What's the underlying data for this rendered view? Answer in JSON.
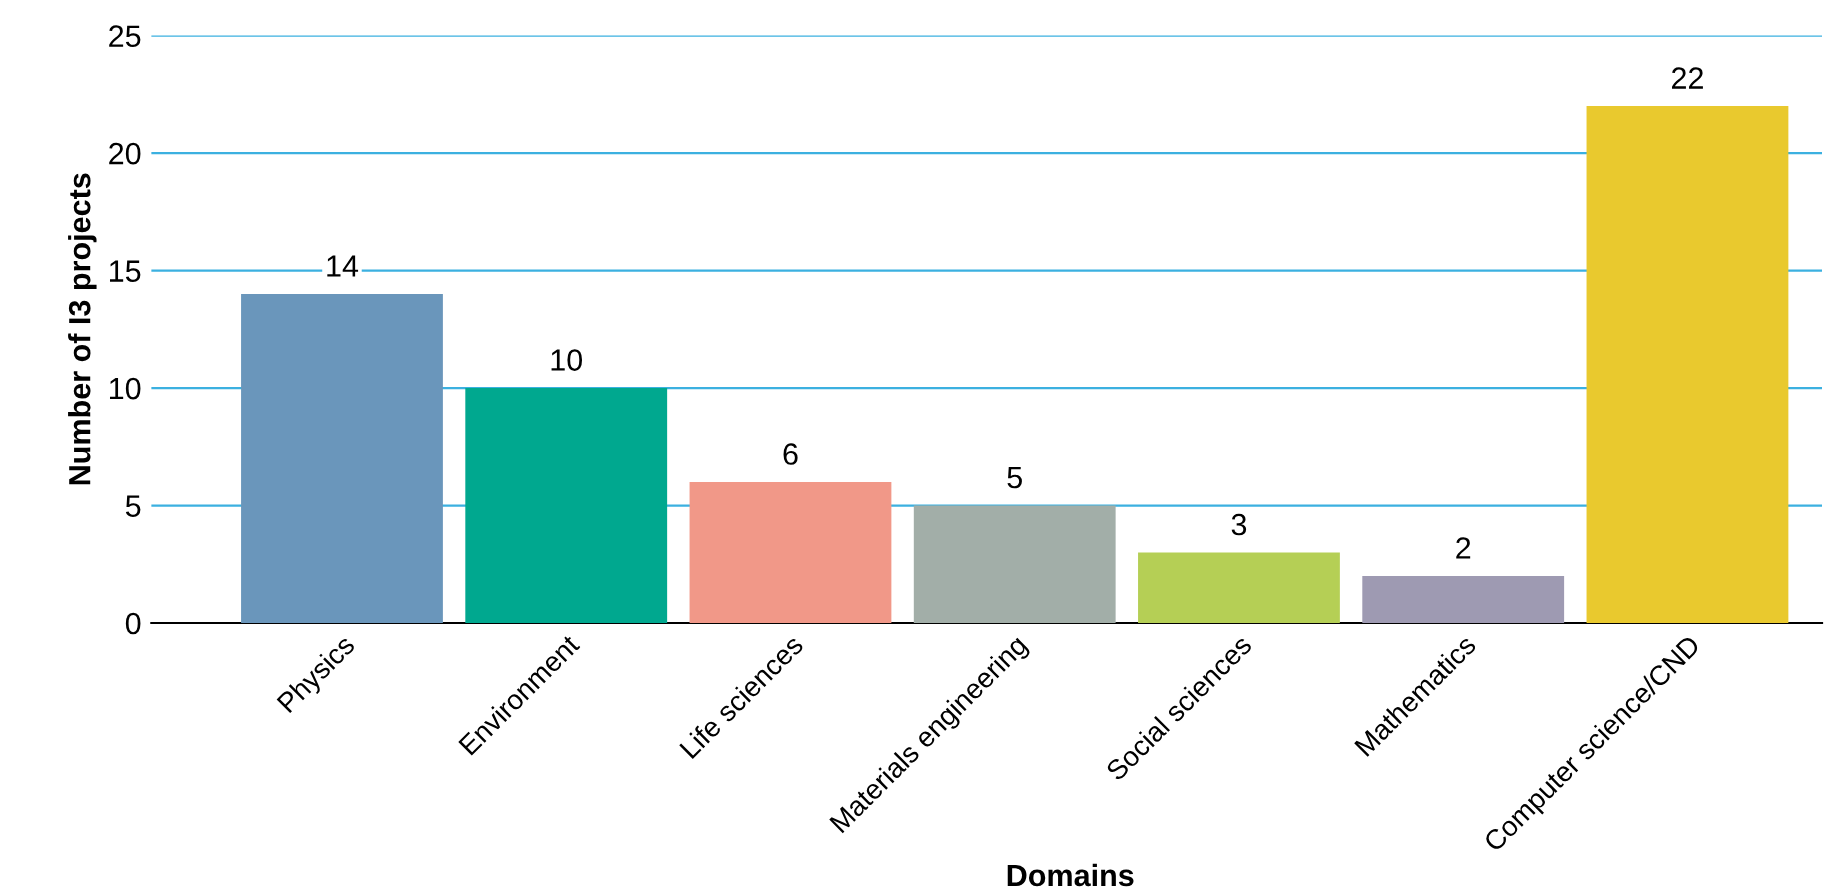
{
  "chart_data": {
    "type": "bar",
    "xlabel": "Domains",
    "ylabel": "Number of I3 projects",
    "categories": [
      "Physics",
      "Environment",
      "Life sciences",
      "Materials engineering",
      "Social sciences",
      "Mathematics",
      "Computer science/CND"
    ],
    "values": [
      14,
      10,
      6,
      5,
      3,
      2,
      22
    ],
    "colors": [
      "#6a96bb",
      "#00a88f",
      "#f19888",
      "#a2aea8",
      "#b5cf55",
      "#9e9ab2",
      "#e9c92e"
    ],
    "ylim": [
      0,
      25
    ],
    "yticks": [
      0,
      5,
      10,
      15,
      20,
      25
    ],
    "grid": "y",
    "data_labels": true
  }
}
